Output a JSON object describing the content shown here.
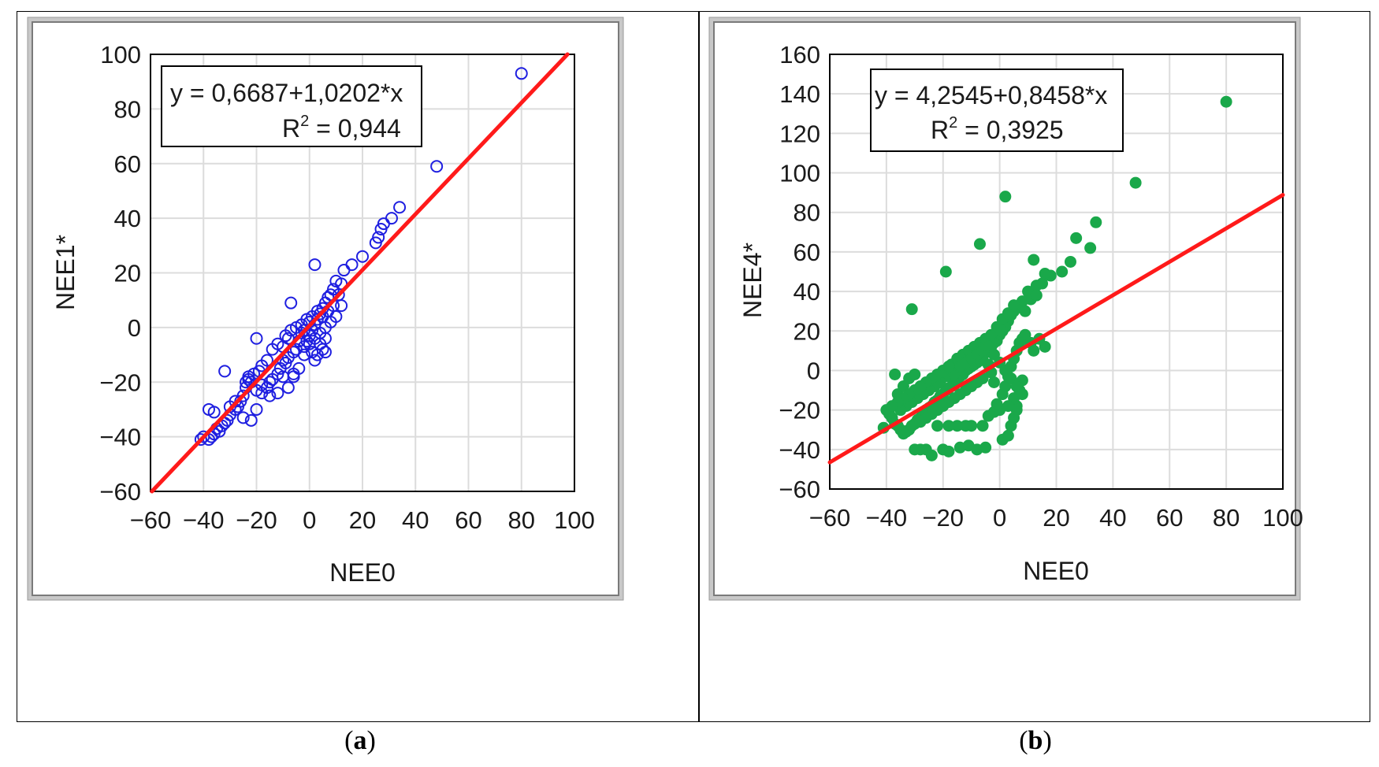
{
  "panels": {
    "a": {
      "caption_open": "(",
      "caption_letter": "a",
      "caption_close": ")",
      "equation": "y = 0,6687+1,0202*x",
      "r2_prefix": "R",
      "r2_sup": "2",
      "r2_value": " = 0,944",
      "color": "#1f1fe0"
    },
    "b": {
      "caption_open": "(",
      "caption_letter": "b",
      "caption_close": ")",
      "equation": "y = 4,2545+0,8458*x",
      "r2_prefix": "R",
      "r2_sup": "2",
      "r2_value": " = 0,3925",
      "color": "#1aa84a"
    }
  },
  "chart_data": [
    {
      "type": "scatter",
      "title": "",
      "xlabel": "NEE0",
      "ylabel": "NEE1*",
      "xlim": [
        -60,
        100
      ],
      "ylim": [
        -60,
        100
      ],
      "xticks": [
        -60,
        -40,
        -20,
        0,
        20,
        40,
        60,
        80,
        100
      ],
      "yticks": [
        -60,
        -40,
        -20,
        0,
        20,
        40,
        60,
        80,
        100
      ],
      "xtick_labels": [
        "−60",
        "−40",
        "−20",
        "0",
        "20",
        "40",
        "60",
        "80",
        "100"
      ],
      "ytick_labels": [
        "−60",
        "−40",
        "−20",
        "0",
        "20",
        "40",
        "60",
        "80",
        "100"
      ],
      "grid": true,
      "marker": "open-circle",
      "regression": {
        "intercept": 0.6687,
        "slope": 1.0202,
        "r2": 0.944,
        "color": "#ff1a1a"
      },
      "points": [
        [
          80,
          93
        ],
        [
          48,
          59
        ],
        [
          34,
          44
        ],
        [
          31,
          40
        ],
        [
          28,
          38
        ],
        [
          27,
          36
        ],
        [
          26,
          33
        ],
        [
          25,
          31
        ],
        [
          20,
          26
        ],
        [
          16,
          23
        ],
        [
          13,
          21
        ],
        [
          12,
          16
        ],
        [
          10,
          17
        ],
        [
          9,
          14
        ],
        [
          8,
          12
        ],
        [
          7,
          11
        ],
        [
          6,
          9
        ],
        [
          5,
          7
        ],
        [
          4,
          5
        ],
        [
          3,
          3
        ],
        [
          2,
          1
        ],
        [
          1,
          -1
        ],
        [
          0,
          -3
        ],
        [
          -1,
          -5
        ],
        [
          -2,
          -7
        ],
        [
          2,
          23
        ],
        [
          -7,
          9
        ],
        [
          -20,
          -4
        ],
        [
          -6,
          -18
        ],
        [
          1,
          -9
        ],
        [
          2,
          -12
        ],
        [
          5,
          -8
        ],
        [
          6,
          -4
        ],
        [
          8,
          2
        ],
        [
          10,
          4
        ],
        [
          12,
          8
        ],
        [
          -3,
          -2
        ],
        [
          -4,
          -5
        ],
        [
          -5,
          -8
        ],
        [
          -6,
          -9
        ],
        [
          -8,
          -11
        ],
        [
          -9,
          -13
        ],
        [
          -10,
          -12
        ],
        [
          -11,
          -15
        ],
        [
          -12,
          -17
        ],
        [
          -14,
          -19
        ],
        [
          -15,
          -20
        ],
        [
          -16,
          -22
        ],
        [
          -18,
          -24
        ],
        [
          -20,
          -23
        ],
        [
          -22,
          -20
        ],
        [
          -23,
          -18
        ],
        [
          -24,
          -22
        ],
        [
          -25,
          -25
        ],
        [
          -26,
          -27
        ],
        [
          -27,
          -29
        ],
        [
          -28,
          -30
        ],
        [
          -30,
          -32
        ],
        [
          -31,
          -34
        ],
        [
          -32,
          -35
        ],
        [
          -33,
          -36
        ],
        [
          -34,
          -38
        ],
        [
          -35,
          -37
        ],
        [
          -36,
          -39
        ],
        [
          -37,
          -40
        ],
        [
          -38,
          -41
        ],
        [
          -40,
          -40
        ],
        [
          -41,
          -41
        ],
        [
          -38,
          -30
        ],
        [
          -36,
          -31
        ],
        [
          -32,
          -16
        ],
        [
          -30,
          -29
        ],
        [
          -28,
          -27
        ],
        [
          -25,
          -33
        ],
        [
          -22,
          -34
        ],
        [
          -20,
          -30
        ],
        [
          -18,
          -21
        ],
        [
          -15,
          -25
        ],
        [
          -12,
          -24
        ],
        [
          -10,
          -18
        ],
        [
          -8,
          -22
        ],
        [
          -6,
          -17
        ],
        [
          -4,
          -15
        ],
        [
          -2,
          -10
        ],
        [
          0,
          -6
        ],
        [
          2,
          -4
        ],
        [
          4,
          -2
        ],
        [
          6,
          0
        ],
        [
          -1,
          3
        ],
        [
          0,
          2
        ],
        [
          1,
          4
        ],
        [
          3,
          6
        ],
        [
          -14,
          -8
        ],
        [
          -12,
          -6
        ],
        [
          -10,
          -7
        ],
        [
          -8,
          -4
        ],
        [
          -16,
          -12
        ],
        [
          -18,
          -14
        ],
        [
          -19,
          -16
        ],
        [
          -21,
          -17
        ],
        [
          -23,
          -19
        ],
        [
          -24,
          -20
        ],
        [
          -9,
          -3
        ],
        [
          -7,
          -1
        ],
        [
          -5,
          0
        ],
        [
          -3,
          1
        ],
        [
          4,
          -6
        ],
        [
          6,
          -9
        ],
        [
          3,
          -10
        ],
        [
          -2,
          -1
        ],
        [
          9,
          8
        ],
        [
          11,
          12
        ],
        [
          7,
          6
        ],
        [
          5,
          4
        ]
      ]
    },
    {
      "type": "scatter",
      "title": "",
      "xlabel": "NEE0",
      "ylabel": "NEE4*",
      "xlim": [
        -60,
        100
      ],
      "ylim": [
        -60,
        160
      ],
      "xticks": [
        -60,
        -40,
        -20,
        0,
        20,
        40,
        60,
        80,
        100
      ],
      "yticks": [
        -60,
        -40,
        -20,
        0,
        20,
        40,
        60,
        80,
        100,
        120,
        140,
        160
      ],
      "xtick_labels": [
        "−60",
        "−40",
        "−20",
        "0",
        "20",
        "40",
        "60",
        "80",
        "100"
      ],
      "ytick_labels": [
        "−60",
        "−40",
        "−20",
        "0",
        "20",
        "40",
        "60",
        "80",
        "100",
        "120",
        "140",
        "160"
      ],
      "grid": true,
      "marker": "filled-circle",
      "regression": {
        "intercept": 4.2545,
        "slope": 0.8458,
        "r2": 0.3925,
        "color": "#ff1a1a"
      },
      "points": [
        [
          80,
          136
        ],
        [
          48,
          95
        ],
        [
          34,
          75
        ],
        [
          2,
          88
        ],
        [
          -7,
          64
        ],
        [
          -19,
          50
        ],
        [
          -31,
          31
        ],
        [
          32,
          62
        ],
        [
          27,
          67
        ],
        [
          25,
          55
        ],
        [
          22,
          50
        ],
        [
          18,
          48
        ],
        [
          16,
          49
        ],
        [
          13,
          43
        ],
        [
          12,
          56
        ],
        [
          10,
          40
        ],
        [
          8,
          35
        ],
        [
          7,
          32
        ],
        [
          5,
          30
        ],
        [
          4,
          28
        ],
        [
          3,
          25
        ],
        [
          2,
          22
        ],
        [
          1,
          20
        ],
        [
          0,
          18
        ],
        [
          -1,
          15
        ],
        [
          -2,
          14
        ],
        [
          -3,
          12
        ],
        [
          -4,
          10
        ],
        [
          -5,
          9
        ],
        [
          -6,
          7
        ],
        [
          -7,
          5
        ],
        [
          -8,
          4
        ],
        [
          -9,
          3
        ],
        [
          -10,
          2
        ],
        [
          -11,
          1
        ],
        [
          -12,
          0
        ],
        [
          -13,
          -2
        ],
        [
          -14,
          -3
        ],
        [
          -15,
          -5
        ],
        [
          -16,
          -6
        ],
        [
          -17,
          -8
        ],
        [
          -18,
          -9
        ],
        [
          -19,
          -10
        ],
        [
          -20,
          -12
        ],
        [
          -21,
          -13
        ],
        [
          -22,
          -15
        ],
        [
          -23,
          -16
        ],
        [
          -24,
          -18
        ],
        [
          -25,
          -19
        ],
        [
          -26,
          -20
        ],
        [
          -27,
          -22
        ],
        [
          -28,
          -24
        ],
        [
          -29,
          -25
        ],
        [
          -30,
          -27
        ],
        [
          -31,
          -28
        ],
        [
          -32,
          -30
        ],
        [
          -33,
          -31
        ],
        [
          -34,
          -32
        ],
        [
          -35,
          -30
        ],
        [
          -36,
          -28
        ],
        [
          -37,
          -27
        ],
        [
          -38,
          -24
        ],
        [
          -39,
          -22
        ],
        [
          -40,
          -20
        ],
        [
          -41,
          -29
        ],
        [
          -36,
          -12
        ],
        [
          -34,
          -8
        ],
        [
          -32,
          -4
        ],
        [
          -30,
          -2
        ],
        [
          -37,
          -2
        ],
        [
          -35,
          -18
        ],
        [
          -33,
          -14
        ],
        [
          -28,
          -40
        ],
        [
          -30,
          -40
        ],
        [
          -26,
          -40
        ],
        [
          -24,
          -43
        ],
        [
          -20,
          -40
        ],
        [
          -18,
          -41
        ],
        [
          -14,
          -39
        ],
        [
          -11,
          -38
        ],
        [
          -8,
          -40
        ],
        [
          -5,
          -39
        ],
        [
          -4,
          -23
        ],
        [
          -2,
          -21
        ],
        [
          -12,
          -28
        ],
        [
          -15,
          -28
        ],
        [
          -18,
          -28
        ],
        [
          -10,
          -28
        ],
        [
          -6,
          -28
        ],
        [
          -22,
          -28
        ],
        [
          1,
          -35
        ],
        [
          3,
          -33
        ],
        [
          4,
          -28
        ],
        [
          5,
          -24
        ],
        [
          6,
          -18
        ],
        [
          7,
          -10
        ],
        [
          8,
          -5
        ],
        [
          0,
          -20
        ],
        [
          -1,
          -17
        ],
        [
          1,
          -12
        ],
        [
          2,
          -8
        ],
        [
          3,
          -3
        ],
        [
          4,
          2
        ],
        [
          5,
          6
        ],
        [
          6,
          10
        ],
        [
          7,
          14
        ],
        [
          8,
          16
        ],
        [
          9,
          18
        ],
        [
          11,
          14
        ],
        [
          12,
          10
        ],
        [
          14,
          16
        ],
        [
          16,
          12
        ],
        [
          5,
          -14
        ],
        [
          6,
          -20
        ],
        [
          3,
          -18
        ],
        [
          -2,
          -6
        ],
        [
          -3,
          -1
        ],
        [
          -4,
          3
        ],
        [
          -6,
          -4
        ],
        [
          -8,
          -6
        ],
        [
          -10,
          -8
        ],
        [
          -12,
          -10
        ],
        [
          -14,
          -12
        ],
        [
          -16,
          -14
        ],
        [
          -18,
          -16
        ],
        [
          -20,
          -18
        ],
        [
          -22,
          -20
        ],
        [
          -24,
          -22
        ],
        [
          -26,
          -24
        ],
        [
          -28,
          -26
        ],
        [
          -17,
          3
        ],
        [
          -15,
          6
        ],
        [
          -13,
          8
        ],
        [
          -11,
          10
        ],
        [
          -9,
          12
        ],
        [
          -7,
          14
        ],
        [
          -5,
          16
        ],
        [
          -3,
          18
        ],
        [
          -1,
          22
        ],
        [
          1,
          26
        ],
        [
          3,
          29
        ],
        [
          5,
          33
        ],
        [
          9,
          30
        ],
        [
          11,
          36
        ],
        [
          13,
          38
        ],
        [
          15,
          44
        ],
        [
          -19,
          -3
        ],
        [
          -21,
          -6
        ],
        [
          -23,
          -8
        ],
        [
          -25,
          -10
        ],
        [
          -27,
          -12
        ],
        [
          -29,
          -14
        ],
        [
          -31,
          -16
        ],
        [
          -33,
          -18
        ],
        [
          -35,
          -20
        ],
        [
          -16,
          -2
        ],
        [
          -14,
          2
        ],
        [
          -12,
          4
        ],
        [
          -10,
          6
        ],
        [
          -8,
          8
        ],
        [
          -6,
          10
        ],
        [
          -4,
          12
        ],
        [
          -2,
          8
        ],
        [
          0,
          4
        ],
        [
          2,
          0
        ],
        [
          4,
          -4
        ],
        [
          6,
          -8
        ],
        [
          8,
          -12
        ],
        [
          -20,
          0
        ],
        [
          -18,
          2
        ],
        [
          -22,
          -2
        ],
        [
          -24,
          -4
        ],
        [
          -26,
          -6
        ],
        [
          -28,
          -8
        ],
        [
          -30,
          -10
        ],
        [
          -32,
          -12
        ],
        [
          -34,
          -14
        ],
        [
          -36,
          -16
        ],
        [
          -38,
          -18
        ]
      ]
    }
  ]
}
